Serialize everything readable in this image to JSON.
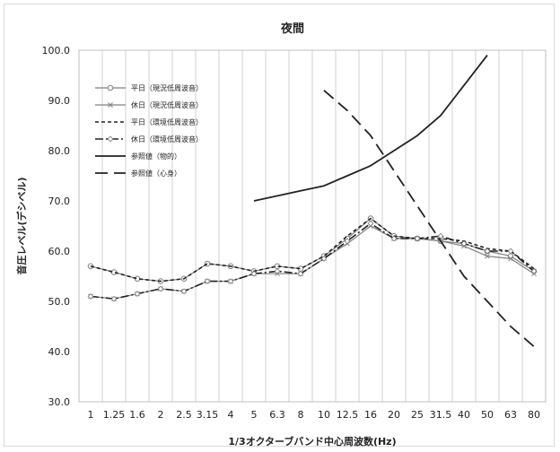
{
  "chart_data": {
    "type": "line",
    "title": "夜間",
    "xlabel": "1/3オクターブバンド中心周波数(Hz)",
    "ylabel": "音圧レベル(デシベル)",
    "ylim": [
      30,
      100
    ],
    "yticks": [
      "30.0",
      "40.0",
      "50.0",
      "60.0",
      "70.0",
      "80.0",
      "90.0",
      "100.0"
    ],
    "grid": "vertical",
    "legend_position": "top-left",
    "categories": [
      "1",
      "1.25",
      "1.6",
      "2",
      "2.5",
      "3.15",
      "4",
      "5",
      "6.3",
      "8",
      "10",
      "12.5",
      "16",
      "20",
      "25",
      "31.5",
      "40",
      "50",
      "63",
      "80"
    ],
    "series": [
      {
        "name": "平日（現況低周波音）",
        "style": "solid-circle",
        "color": "#808080",
        "values": [
          57,
          55.8,
          54.5,
          54,
          54.5,
          57.5,
          57,
          56,
          57,
          56.5,
          59,
          62.5,
          66.5,
          63,
          62.5,
          62,
          61.5,
          60,
          59,
          56
        ]
      },
      {
        "name": "休日（現況低周波音）",
        "style": "solid-cross",
        "color": "#808080",
        "values": [
          51,
          50.5,
          51.5,
          52.5,
          52,
          54,
          54,
          55.5,
          55.5,
          55.5,
          58.5,
          61.5,
          65,
          62.5,
          62.5,
          62,
          61,
          59,
          58.5,
          55.5
        ]
      },
      {
        "name": "平日（環境低周波音）",
        "style": "short-dash",
        "color": "#222222",
        "values": [
          57,
          55.8,
          54.5,
          54,
          54.5,
          57.5,
          57,
          56,
          57,
          56.5,
          59,
          63,
          66.5,
          63,
          62.5,
          62.5,
          62,
          60.5,
          60,
          56.5
        ]
      },
      {
        "name": "休日（環境低周波音）",
        "style": "dash-dot",
        "color": "#222222",
        "values": [
          51,
          50.5,
          51.5,
          52.5,
          52,
          54,
          54,
          55.5,
          56,
          55.5,
          58.5,
          62,
          65.5,
          62.5,
          62.5,
          63,
          61.5,
          60,
          60,
          56
        ]
      },
      {
        "name": "参照値（物的）",
        "style": "solid",
        "color": "#222222",
        "values": [
          null,
          null,
          null,
          null,
          null,
          null,
          null,
          70,
          71,
          72,
          73,
          75,
          77,
          80,
          83,
          87,
          93,
          99,
          null,
          null
        ]
      },
      {
        "name": "参照値（心身）",
        "style": "long-dash",
        "color": "#222222",
        "values": [
          null,
          null,
          null,
          null,
          null,
          null,
          null,
          null,
          null,
          null,
          92,
          88,
          83,
          76,
          69,
          62,
          55,
          50,
          45,
          41
        ]
      }
    ]
  }
}
